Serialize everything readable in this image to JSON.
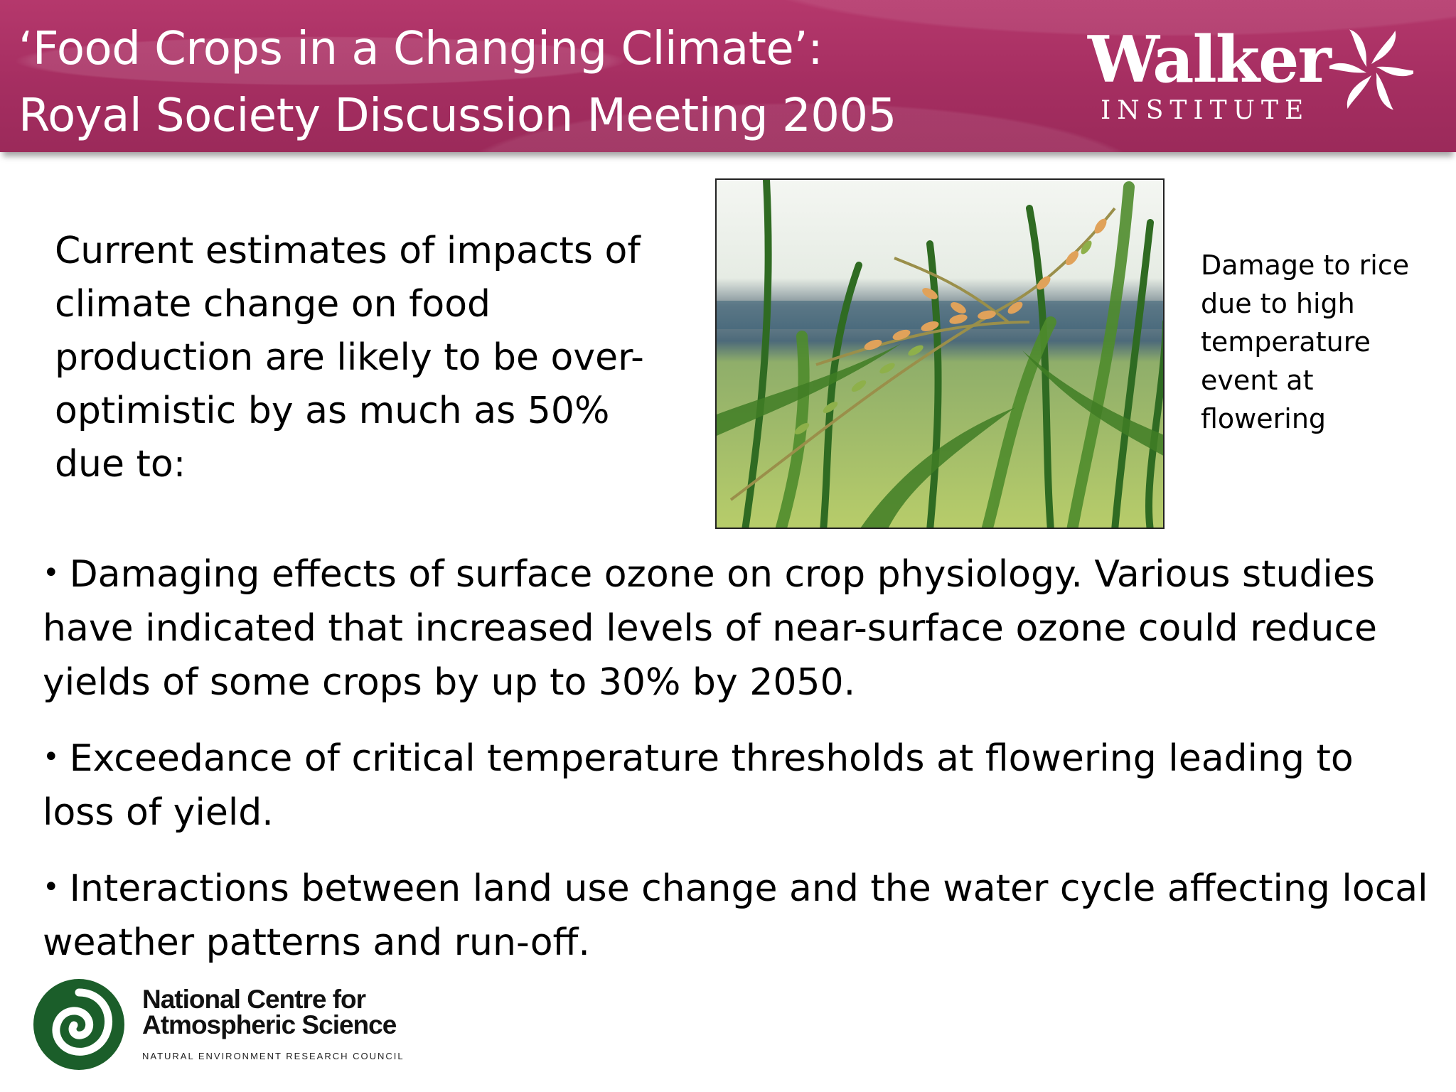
{
  "header": {
    "title_line1": "‘Food Crops in a Changing Climate’:",
    "title_line2": "Royal Society Discussion Meeting 2005",
    "logo": {
      "name": "Walker",
      "subtitle": "INSTITUTE",
      "icon": "pinwheel-swirl-icon"
    }
  },
  "intro": "Current estimates of impacts of climate change on food production are likely to be over-optimistic by as much as 50% due to:",
  "photo": {
    "subject": "rice-plant-photo",
    "caption": "Damage to rice due to high temperature event at flowering"
  },
  "bullets": [
    {
      "marker": "•",
      "text": "Damaging effects of surface ozone on crop physiology. Various studies have indicated that increased levels of near-surface ozone could reduce yields of some crops by up to 30% by 2050."
    },
    {
      "marker": "•",
      "text": "Exceedance of critical temperature thresholds at flowering leading to loss of yield."
    },
    {
      "marker": "•",
      "text": "Interactions between land use change and the water cycle affecting local weather patterns and run-off."
    }
  ],
  "footer_logo": {
    "name_line1": "National Centre for",
    "name_line2": "Atmospheric Science",
    "subtitle": "NATURAL ENVIRONMENT RESEARCH COUNCIL",
    "icon": "green-spiral-icon"
  },
  "colors": {
    "header_band": "#a52e61",
    "header_text": "#ffffff",
    "ncas_green": "#1b5e2a"
  }
}
